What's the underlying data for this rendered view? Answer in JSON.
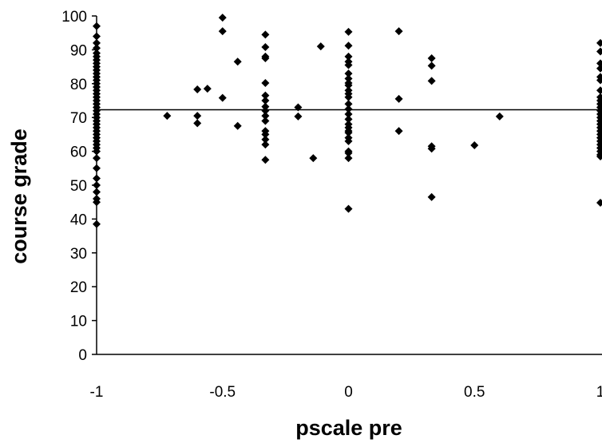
{
  "chart_data": {
    "type": "scatter",
    "title": "",
    "xlabel": "pscale pre",
    "ylabel": "course grade",
    "xlim": [
      -1,
      1
    ],
    "ylim": [
      0,
      100
    ],
    "x_ticks": [
      "-1",
      "-0.5",
      "0",
      "0.5",
      "1"
    ],
    "y_ticks": [
      "0",
      "10",
      "20",
      "30",
      "40",
      "50",
      "60",
      "70",
      "80",
      "90",
      "100"
    ],
    "grid": false,
    "legend": "none",
    "horizontal_line": {
      "y": 72.3
    },
    "marker": {
      "shape": "diamond",
      "color": "#000000"
    },
    "series": [
      {
        "points": [
          [
            -1,
            97
          ],
          [
            -1,
            94
          ],
          [
            -1,
            92
          ],
          [
            -1,
            90.5
          ],
          [
            -1,
            89
          ],
          [
            -1,
            88
          ],
          [
            -1,
            87
          ],
          [
            -1,
            86
          ],
          [
            -1,
            85
          ],
          [
            -1,
            84
          ],
          [
            -1,
            83
          ],
          [
            -1,
            82
          ],
          [
            -1,
            81
          ],
          [
            -1,
            80
          ],
          [
            -1,
            79
          ],
          [
            -1,
            78
          ],
          [
            -1,
            77
          ],
          [
            -1,
            76
          ],
          [
            -1,
            75
          ],
          [
            -1,
            74
          ],
          [
            -1,
            73
          ],
          [
            -1,
            72
          ],
          [
            -1,
            71
          ],
          [
            -1,
            70
          ],
          [
            -1,
            69
          ],
          [
            -1,
            68
          ],
          [
            -1,
            67
          ],
          [
            -1,
            66
          ],
          [
            -1,
            65
          ],
          [
            -1,
            64
          ],
          [
            -1,
            63
          ],
          [
            -1,
            62
          ],
          [
            -1,
            61
          ],
          [
            -1,
            60
          ],
          [
            -1,
            58
          ],
          [
            -1,
            55
          ],
          [
            -1,
            52
          ],
          [
            -1,
            50
          ],
          [
            -1,
            48
          ],
          [
            -1,
            46
          ],
          [
            -1,
            45
          ],
          [
            -1,
            38.5
          ],
          [
            -0.72,
            70.5
          ],
          [
            -0.6,
            78.3
          ],
          [
            -0.6,
            70.5
          ],
          [
            -0.6,
            68.3
          ],
          [
            -0.56,
            78.5
          ],
          [
            -0.5,
            99.5
          ],
          [
            -0.5,
            95.5
          ],
          [
            -0.5,
            75.8
          ],
          [
            -0.44,
            86.5
          ],
          [
            -0.44,
            67.5
          ],
          [
            -0.33,
            94.5
          ],
          [
            -0.33,
            90.8
          ],
          [
            -0.33,
            88
          ],
          [
            -0.33,
            87.5
          ],
          [
            -0.33,
            80.2
          ],
          [
            -0.33,
            76.5
          ],
          [
            -0.33,
            75
          ],
          [
            -0.33,
            73.2
          ],
          [
            -0.33,
            72
          ],
          [
            -0.33,
            70.5
          ],
          [
            -0.33,
            69
          ],
          [
            -0.33,
            66
          ],
          [
            -0.33,
            65
          ],
          [
            -0.33,
            63.5
          ],
          [
            -0.33,
            62
          ],
          [
            -0.33,
            57.5
          ],
          [
            -0.2,
            73
          ],
          [
            -0.2,
            70.3
          ],
          [
            -0.14,
            58
          ],
          [
            -0.11,
            91
          ],
          [
            0,
            95.3
          ],
          [
            0,
            91.2
          ],
          [
            0,
            88
          ],
          [
            0,
            86.5
          ],
          [
            0,
            85.5
          ],
          [
            0,
            83
          ],
          [
            0,
            81.5
          ],
          [
            0,
            80.2
          ],
          [
            0,
            79.5
          ],
          [
            0,
            78
          ],
          [
            0,
            77
          ],
          [
            0,
            76
          ],
          [
            0,
            74
          ],
          [
            0,
            72.5
          ],
          [
            0,
            71
          ],
          [
            0,
            69.5
          ],
          [
            0,
            68
          ],
          [
            0,
            67
          ],
          [
            0,
            66
          ],
          [
            0,
            65.5
          ],
          [
            0,
            64
          ],
          [
            0,
            63
          ],
          [
            0,
            60
          ],
          [
            0,
            59.5
          ],
          [
            0,
            58
          ],
          [
            0,
            43
          ],
          [
            0.2,
            95.5
          ],
          [
            0.2,
            75.5
          ],
          [
            0.2,
            66
          ],
          [
            0.33,
            87.5
          ],
          [
            0.33,
            85.3
          ],
          [
            0.33,
            80.8
          ],
          [
            0.33,
            61.5
          ],
          [
            0.33,
            60.8
          ],
          [
            0.33,
            46.5
          ],
          [
            0.5,
            61.8
          ],
          [
            0.6,
            70.3
          ],
          [
            1,
            92
          ],
          [
            1,
            89.5
          ],
          [
            1,
            86
          ],
          [
            1,
            84.5
          ],
          [
            1,
            82
          ],
          [
            1,
            81
          ],
          [
            1,
            78
          ],
          [
            1,
            76
          ],
          [
            1,
            75
          ],
          [
            1,
            74
          ],
          [
            1,
            73
          ],
          [
            1,
            72
          ],
          [
            1,
            71
          ],
          [
            1,
            70
          ],
          [
            1,
            69
          ],
          [
            1,
            68
          ],
          [
            1,
            67
          ],
          [
            1,
            66
          ],
          [
            1,
            65
          ],
          [
            1,
            64
          ],
          [
            1,
            63
          ],
          [
            1,
            62
          ],
          [
            1,
            61
          ],
          [
            1,
            60
          ],
          [
            1,
            59
          ],
          [
            1,
            58.5
          ],
          [
            1,
            44.8
          ]
        ]
      }
    ]
  }
}
